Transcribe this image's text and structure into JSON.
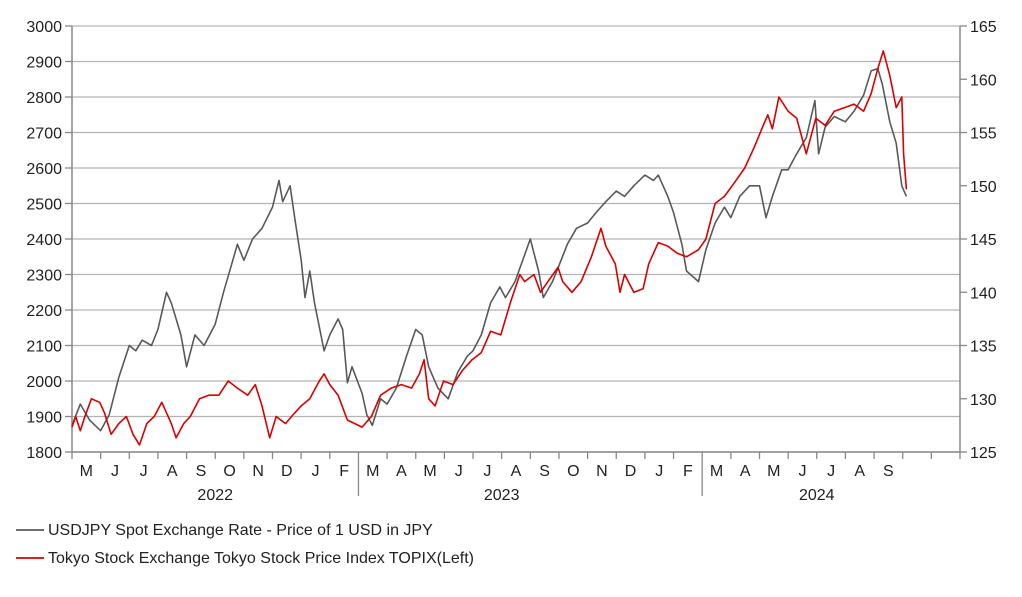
{
  "chart_data": {
    "type": "line",
    "grid": true,
    "left_axis": {
      "ylim": [
        1800,
        3000
      ],
      "ticks": [
        1800,
        1900,
        2000,
        2100,
        2200,
        2300,
        2400,
        2500,
        2600,
        2700,
        2800,
        2900,
        3000
      ]
    },
    "right_axis": {
      "ylim": [
        125,
        165
      ],
      "ticks": [
        125,
        130,
        135,
        140,
        145,
        150,
        155,
        160,
        165
      ]
    },
    "x_axis": {
      "start": "2022-03",
      "end": "2024-10",
      "month_labels": [
        "M",
        "J",
        "J",
        "A",
        "S",
        "O",
        "N",
        "D",
        "J",
        "F",
        "M",
        "A",
        "M",
        "J",
        "J",
        "A",
        "S",
        "O",
        "N",
        "D",
        "J",
        "F",
        "M",
        "A",
        "M",
        "J",
        "J",
        "A",
        "S"
      ],
      "year_labels": [
        {
          "label": "2022",
          "center_month": "2022-08"
        },
        {
          "label": "2023",
          "center_month": "2023-06"
        },
        {
          "label": "2024",
          "center_month": "2024-05"
        }
      ]
    },
    "legend_placement": "bottom-left",
    "series": [
      {
        "name": "USDJPY Spot Exchange Rate - Price of 1 USD in JPY",
        "axis": "right",
        "color": "#595959",
        "points": [
          [
            "2022-03-01",
            127.5
          ],
          [
            "2022-03-10",
            129.5
          ],
          [
            "2022-03-20",
            128.0
          ],
          [
            "2022-04-01",
            127.0
          ],
          [
            "2022-04-10",
            128.5
          ],
          [
            "2022-04-20",
            132.0
          ],
          [
            "2022-05-01",
            135.0
          ],
          [
            "2022-05-08",
            134.5
          ],
          [
            "2022-05-15",
            135.5
          ],
          [
            "2022-05-25",
            135.0
          ],
          [
            "2022-06-01",
            136.5
          ],
          [
            "2022-06-10",
            140.0
          ],
          [
            "2022-06-15",
            139.0
          ],
          [
            "2022-06-25",
            136.0
          ],
          [
            "2022-07-01",
            133.0
          ],
          [
            "2022-07-10",
            136.0
          ],
          [
            "2022-07-20",
            135.0
          ],
          [
            "2022-08-01",
            137.0
          ],
          [
            "2022-08-10",
            140.0
          ],
          [
            "2022-08-20",
            143.0
          ],
          [
            "2022-08-25",
            144.5
          ],
          [
            "2022-09-01",
            143.0
          ],
          [
            "2022-09-10",
            145.0
          ],
          [
            "2022-09-20",
            146.0
          ],
          [
            "2022-10-01",
            148.0
          ],
          [
            "2022-10-08",
            150.5
          ],
          [
            "2022-10-12",
            148.5
          ],
          [
            "2022-10-20",
            150.0
          ],
          [
            "2022-10-25",
            147.0
          ],
          [
            "2022-11-01",
            143.0
          ],
          [
            "2022-11-05",
            139.5
          ],
          [
            "2022-11-10",
            142.0
          ],
          [
            "2022-11-15",
            139.0
          ],
          [
            "2022-11-25",
            134.5
          ],
          [
            "2022-12-01",
            136.0
          ],
          [
            "2022-12-10",
            137.5
          ],
          [
            "2022-12-15",
            136.5
          ],
          [
            "2022-12-20",
            131.5
          ],
          [
            "2022-12-25",
            133.0
          ],
          [
            "2023-01-05",
            130.5
          ],
          [
            "2023-01-10",
            128.5
          ],
          [
            "2023-01-16",
            127.5
          ],
          [
            "2023-01-25",
            130.0
          ],
          [
            "2023-02-01",
            129.5
          ],
          [
            "2023-02-10",
            131.0
          ],
          [
            "2023-02-20",
            134.0
          ],
          [
            "2023-03-01",
            136.5
          ],
          [
            "2023-03-08",
            136.0
          ],
          [
            "2023-03-15",
            133.0
          ],
          [
            "2023-03-25",
            131.0
          ],
          [
            "2023-04-05",
            130.0
          ],
          [
            "2023-04-15",
            132.5
          ],
          [
            "2023-04-25",
            134.0
          ],
          [
            "2023-05-01",
            134.5
          ],
          [
            "2023-05-10",
            136.0
          ],
          [
            "2023-05-20",
            139.0
          ],
          [
            "2023-05-30",
            140.5
          ],
          [
            "2023-06-05",
            139.5
          ],
          [
            "2023-06-15",
            141.0
          ],
          [
            "2023-06-25",
            143.5
          ],
          [
            "2023-07-01",
            145.0
          ],
          [
            "2023-07-10",
            142.0
          ],
          [
            "2023-07-15",
            139.5
          ],
          [
            "2023-07-25",
            141.0
          ],
          [
            "2023-08-01",
            142.5
          ],
          [
            "2023-08-10",
            144.5
          ],
          [
            "2023-08-20",
            146.0
          ],
          [
            "2023-09-01",
            146.5
          ],
          [
            "2023-09-10",
            147.5
          ],
          [
            "2023-09-20",
            148.5
          ],
          [
            "2023-10-01",
            149.5
          ],
          [
            "2023-10-10",
            149.0
          ],
          [
            "2023-10-20",
            150.0
          ],
          [
            "2023-11-01",
            151.0
          ],
          [
            "2023-11-10",
            150.5
          ],
          [
            "2023-11-15",
            151.0
          ],
          [
            "2023-11-25",
            149.0
          ],
          [
            "2023-12-01",
            147.5
          ],
          [
            "2023-12-10",
            144.5
          ],
          [
            "2023-12-15",
            142.0
          ],
          [
            "2023-12-28",
            141.0
          ],
          [
            "2024-01-05",
            144.0
          ],
          [
            "2024-01-15",
            146.5
          ],
          [
            "2024-01-25",
            148.0
          ],
          [
            "2024-02-01",
            147.0
          ],
          [
            "2024-02-10",
            149.0
          ],
          [
            "2024-02-20",
            150.0
          ],
          [
            "2024-03-01",
            150.0
          ],
          [
            "2024-03-08",
            147.0
          ],
          [
            "2024-03-15",
            149.0
          ],
          [
            "2024-03-25",
            151.5
          ],
          [
            "2024-04-01",
            151.5
          ],
          [
            "2024-04-10",
            153.0
          ],
          [
            "2024-04-20",
            154.5
          ],
          [
            "2024-04-29",
            158.0
          ],
          [
            "2024-05-03",
            153.0
          ],
          [
            "2024-05-10",
            155.5
          ],
          [
            "2024-05-20",
            156.5
          ],
          [
            "2024-06-01",
            156.0
          ],
          [
            "2024-06-10",
            157.0
          ],
          [
            "2024-06-20",
            158.5
          ],
          [
            "2024-06-28",
            160.8
          ],
          [
            "2024-07-05",
            161.0
          ],
          [
            "2024-07-10",
            159.5
          ],
          [
            "2024-07-18",
            156.0
          ],
          [
            "2024-07-25",
            154.0
          ],
          [
            "2024-07-31",
            150.0
          ],
          [
            "2024-08-05",
            149.0
          ]
        ]
      },
      {
        "name": "Tokyo Stock Exchange Tokyo Stock Price Index TOPIX(Left)",
        "axis": "left",
        "color": "#d80000",
        "points": [
          [
            "2022-03-01",
            1870
          ],
          [
            "2022-03-05",
            1900
          ],
          [
            "2022-03-10",
            1860
          ],
          [
            "2022-03-15",
            1900
          ],
          [
            "2022-03-22",
            1950
          ],
          [
            "2022-03-31",
            1940
          ],
          [
            "2022-04-05",
            1910
          ],
          [
            "2022-04-12",
            1850
          ],
          [
            "2022-04-20",
            1880
          ],
          [
            "2022-04-28",
            1900
          ],
          [
            "2022-05-05",
            1850
          ],
          [
            "2022-05-12",
            1820
          ],
          [
            "2022-05-20",
            1880
          ],
          [
            "2022-05-28",
            1900
          ],
          [
            "2022-06-05",
            1940
          ],
          [
            "2022-06-15",
            1880
          ],
          [
            "2022-06-20",
            1840
          ],
          [
            "2022-06-28",
            1880
          ],
          [
            "2022-07-05",
            1900
          ],
          [
            "2022-07-15",
            1950
          ],
          [
            "2022-07-25",
            1960
          ],
          [
            "2022-08-05",
            1960
          ],
          [
            "2022-08-15",
            2000
          ],
          [
            "2022-08-25",
            1980
          ],
          [
            "2022-09-05",
            1960
          ],
          [
            "2022-09-13",
            1990
          ],
          [
            "2022-09-20",
            1930
          ],
          [
            "2022-09-28",
            1840
          ],
          [
            "2022-10-05",
            1900
          ],
          [
            "2022-10-15",
            1880
          ],
          [
            "2022-10-25",
            1910
          ],
          [
            "2022-11-01",
            1930
          ],
          [
            "2022-11-10",
            1950
          ],
          [
            "2022-11-20",
            2000
          ],
          [
            "2022-11-25",
            2020
          ],
          [
            "2022-12-01",
            1990
          ],
          [
            "2022-12-10",
            1960
          ],
          [
            "2022-12-20",
            1890
          ],
          [
            "2022-12-28",
            1880
          ],
          [
            "2023-01-05",
            1870
          ],
          [
            "2023-01-15",
            1900
          ],
          [
            "2023-01-25",
            1960
          ],
          [
            "2023-02-05",
            1980
          ],
          [
            "2023-02-15",
            1990
          ],
          [
            "2023-02-25",
            1980
          ],
          [
            "2023-03-05",
            2020
          ],
          [
            "2023-03-10",
            2060
          ],
          [
            "2023-03-15",
            1950
          ],
          [
            "2023-03-22",
            1930
          ],
          [
            "2023-03-31",
            2000
          ],
          [
            "2023-04-10",
            1990
          ],
          [
            "2023-04-20",
            2030
          ],
          [
            "2023-04-30",
            2060
          ],
          [
            "2023-05-10",
            2080
          ],
          [
            "2023-05-20",
            2140
          ],
          [
            "2023-05-31",
            2130
          ],
          [
            "2023-06-10",
            2220
          ],
          [
            "2023-06-20",
            2300
          ],
          [
            "2023-06-25",
            2280
          ],
          [
            "2023-07-05",
            2300
          ],
          [
            "2023-07-12",
            2250
          ],
          [
            "2023-07-20",
            2280
          ],
          [
            "2023-07-31",
            2320
          ],
          [
            "2023-08-05",
            2280
          ],
          [
            "2023-08-15",
            2250
          ],
          [
            "2023-08-25",
            2280
          ],
          [
            "2023-09-05",
            2350
          ],
          [
            "2023-09-15",
            2430
          ],
          [
            "2023-09-20",
            2380
          ],
          [
            "2023-09-30",
            2330
          ],
          [
            "2023-10-05",
            2250
          ],
          [
            "2023-10-10",
            2300
          ],
          [
            "2023-10-20",
            2250
          ],
          [
            "2023-10-30",
            2260
          ],
          [
            "2023-11-05",
            2330
          ],
          [
            "2023-11-15",
            2390
          ],
          [
            "2023-11-25",
            2380
          ],
          [
            "2023-12-05",
            2360
          ],
          [
            "2023-12-15",
            2350
          ],
          [
            "2023-12-28",
            2370
          ],
          [
            "2024-01-05",
            2400
          ],
          [
            "2024-01-15",
            2500
          ],
          [
            "2024-01-25",
            2520
          ],
          [
            "2024-02-05",
            2560
          ],
          [
            "2024-02-15",
            2600
          ],
          [
            "2024-02-25",
            2660
          ],
          [
            "2024-03-05",
            2720
          ],
          [
            "2024-03-10",
            2750
          ],
          [
            "2024-03-15",
            2710
          ],
          [
            "2024-03-22",
            2800
          ],
          [
            "2024-04-01",
            2760
          ],
          [
            "2024-04-10",
            2740
          ],
          [
            "2024-04-20",
            2640
          ],
          [
            "2024-04-30",
            2740
          ],
          [
            "2024-05-10",
            2720
          ],
          [
            "2024-05-20",
            2760
          ],
          [
            "2024-05-31",
            2770
          ],
          [
            "2024-06-10",
            2780
          ],
          [
            "2024-06-20",
            2760
          ],
          [
            "2024-06-28",
            2810
          ],
          [
            "2024-07-05",
            2880
          ],
          [
            "2024-07-11",
            2930
          ],
          [
            "2024-07-18",
            2860
          ],
          [
            "2024-07-25",
            2770
          ],
          [
            "2024-07-31",
            2800
          ],
          [
            "2024-08-02",
            2640
          ],
          [
            "2024-08-05",
            2540
          ]
        ]
      }
    ]
  }
}
